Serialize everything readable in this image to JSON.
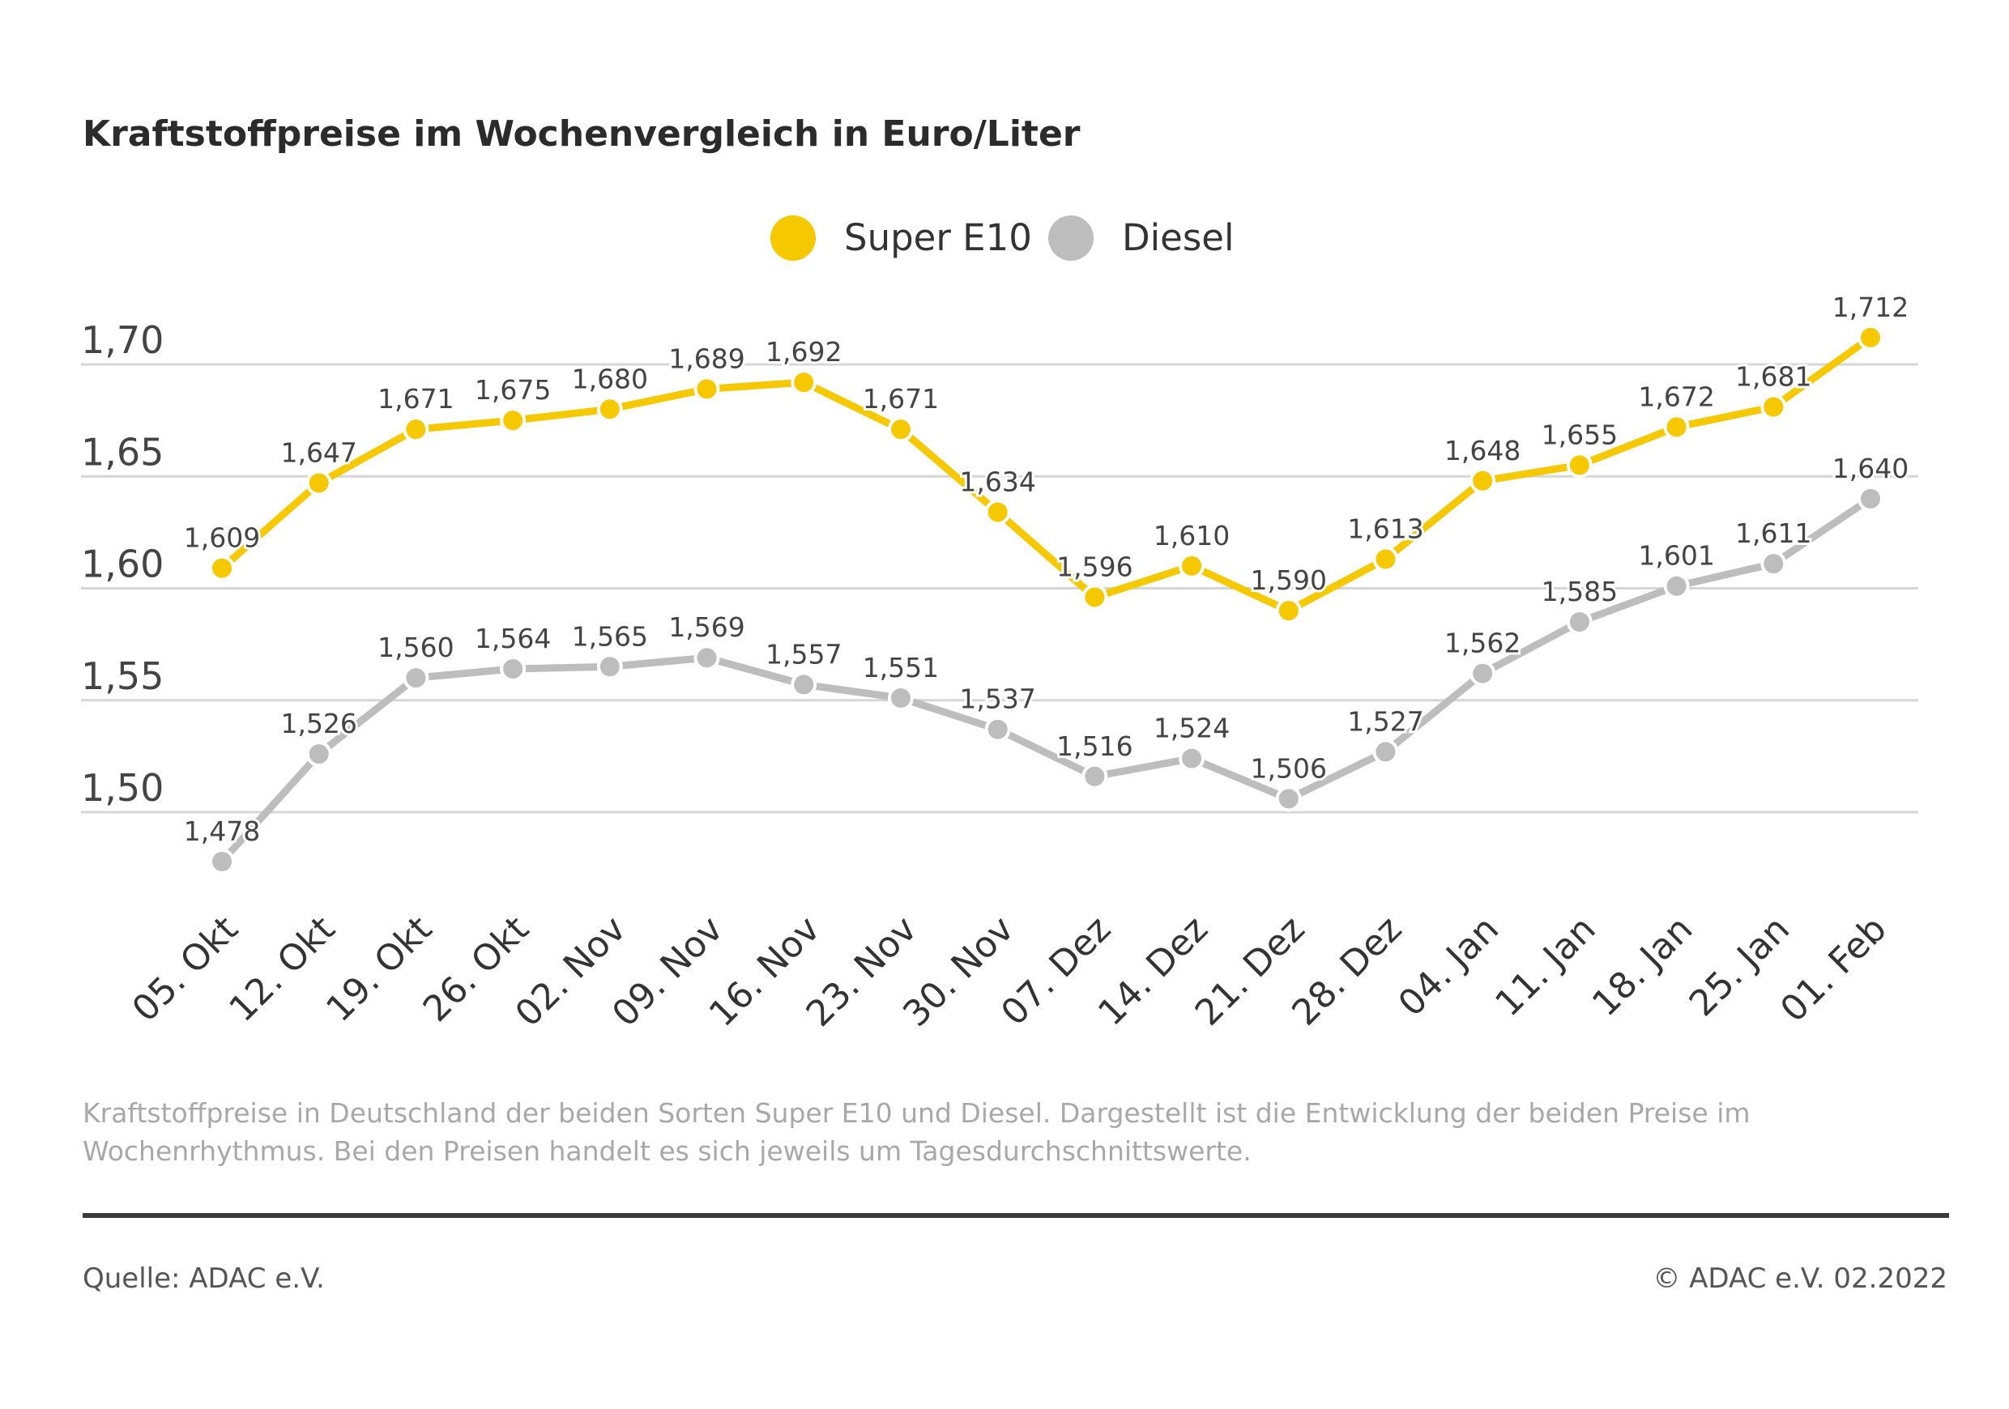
{
  "chart_data": {
    "type": "line",
    "title": "Kraftstoffpreise im Wochenvergleich in Euro/Liter",
    "categories": [
      "05. Okt",
      "12. Okt",
      "19. Okt",
      "26. Okt",
      "02. Nov",
      "09. Nov",
      "16. Nov",
      "23. Nov",
      "30. Nov",
      "07. Dez",
      "14. Dez",
      "21. Dez",
      "28. Dez",
      "04. Jan",
      "11. Jan",
      "18. Jan",
      "25. Jan",
      "01. Feb"
    ],
    "series": [
      {
        "name": "Super E10",
        "color": "#f6c800",
        "values": [
          1.609,
          1.647,
          1.671,
          1.675,
          1.68,
          1.689,
          1.692,
          1.671,
          1.634,
          1.596,
          1.61,
          1.59,
          1.613,
          1.648,
          1.655,
          1.672,
          1.681,
          1.712
        ],
        "labels": [
          "1,609",
          "1,647",
          "1,671",
          "1,675",
          "1,680",
          "1,689",
          "1,692",
          "1,671",
          "1,634",
          "1,596",
          "1,610",
          "1,590",
          "1,613",
          "1,648",
          "1,655",
          "1,672",
          "1,681",
          "1,712"
        ]
      },
      {
        "name": "Diesel",
        "color": "#bdbdbd",
        "values": [
          1.478,
          1.526,
          1.56,
          1.564,
          1.565,
          1.569,
          1.557,
          1.551,
          1.537,
          1.516,
          1.524,
          1.506,
          1.527,
          1.562,
          1.585,
          1.601,
          1.611,
          1.64
        ],
        "labels": [
          "1,478",
          "1,526",
          "1,560",
          "1,564",
          "1,565",
          "1,569",
          "1,557",
          "1,551",
          "1,537",
          "1,516",
          "1,524",
          "1,506",
          "1,527",
          "1,562",
          "1,585",
          "1,601",
          "1,611",
          "1,640"
        ]
      }
    ],
    "yticks": [
      1.7,
      1.65,
      1.6,
      1.55,
      1.5
    ],
    "ytick_labels": [
      "1,70",
      "1,65",
      "1,60",
      "1,55",
      "1,50"
    ],
    "ylim": [
      1.5,
      1.7
    ],
    "grid": true,
    "legend_position": "top-center"
  },
  "footnote": {
    "line1": "Kraftstoffpreise in Deutschland der beiden Sorten Super E10 und Diesel. Dargestellt ist die Entwicklung der beiden Preise im",
    "line2": "Wochenrhythmus. Bei den Preisen handelt es sich jeweils um Tagesdurchschnittswerte."
  },
  "source": "Quelle: ADAC e.V.",
  "copyright": "© ADAC e.V. 02.2022"
}
